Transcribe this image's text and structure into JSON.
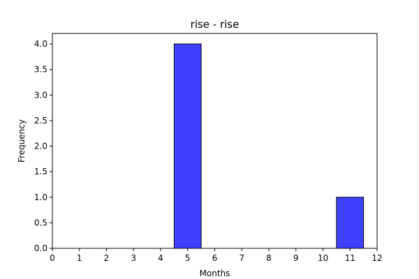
{
  "chart_data": {
    "type": "bar",
    "title": "rise - rise",
    "xlabel": "Months",
    "ylabel": "Frequency",
    "xlim": [
      0,
      12
    ],
    "ylim": [
      0,
      4.2
    ],
    "x_ticks": [
      "0",
      "1",
      "2",
      "3",
      "4",
      "5",
      "6",
      "7",
      "8",
      "9",
      "10",
      "11",
      "12"
    ],
    "y_ticks": [
      "0.0",
      "0.5",
      "1.0",
      "1.5",
      "2.0",
      "2.5",
      "3.0",
      "3.5",
      "4.0"
    ],
    "bars": [
      {
        "x": 5,
        "value": 4
      },
      {
        "x": 11,
        "value": 1
      }
    ],
    "bar_width": 1,
    "bar_color": "#4040ff",
    "edge_color": "#000000",
    "grid": false
  }
}
